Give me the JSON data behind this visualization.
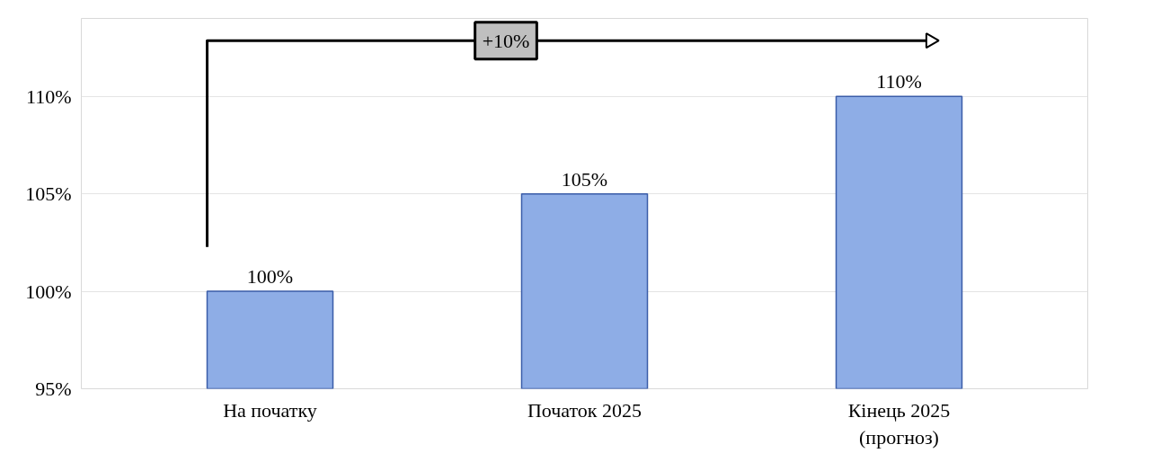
{
  "chart_data": {
    "type": "bar",
    "categories": [
      "На початку",
      "Початок 2025",
      "Кінець 2025\n(прогноз)"
    ],
    "values": [
      100,
      105,
      110
    ],
    "color": "#8eade6",
    "value_labels": [
      "100%",
      "105%",
      "110%"
    ],
    "ylim": [
      95,
      114
    ],
    "yticks": [
      {
        "value": 95,
        "label": "95%"
      },
      {
        "value": 100,
        "label": "100%"
      },
      {
        "value": 105,
        "label": "105%"
      },
      {
        "value": 110,
        "label": "110%"
      }
    ],
    "grid": "y",
    "annotations": [
      "+10%"
    ]
  }
}
